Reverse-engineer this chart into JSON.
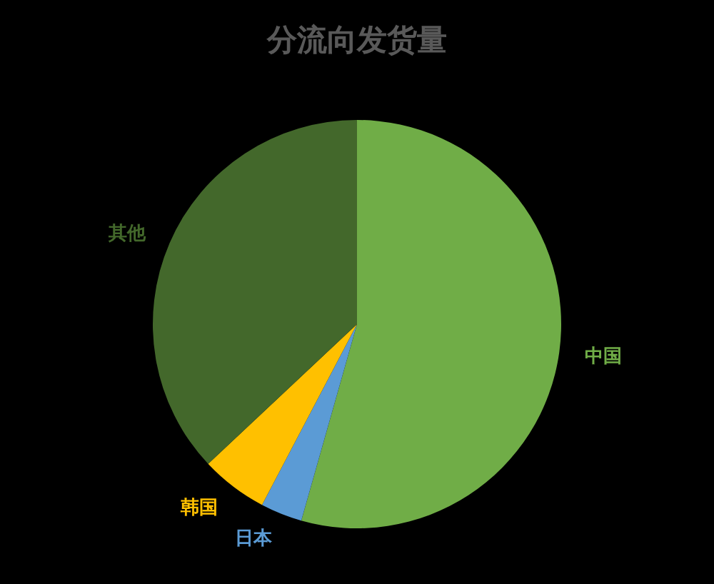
{
  "chart_data": {
    "type": "pie",
    "title": "分流向发货量",
    "categories": [
      "中国",
      "日本",
      "韩国",
      "其他"
    ],
    "values": [
      54.4,
      3.3,
      5.3,
      37.0
    ],
    "colors": [
      "#70ad47",
      "#5b9bd5",
      "#ffc000",
      "#43682b"
    ]
  }
}
